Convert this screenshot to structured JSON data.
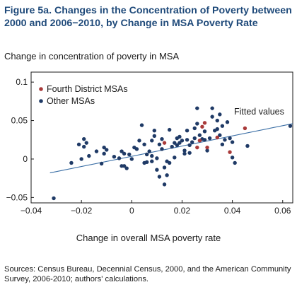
{
  "figure": {
    "title": "Figure 5a. Changes in the Concentration of Poverty between 2000 and 2006−2010, by Change in MSA Poverty Rate",
    "source": "Sources: Census Bureau, Decennial Census, 2000, and the American Community Survey, 2006-2010;  authors' calculations."
  },
  "chart_data": {
    "type": "scatter",
    "ylabel": "Change in concentration of poverty in MSA",
    "xlabel": "Change in overall MSA poverty rate",
    "xlim": [
      -0.04,
      0.064
    ],
    "ylim": [
      -0.057,
      0.113
    ],
    "x_ticks": [
      -0.04,
      -0.02,
      0,
      0.02,
      0.04,
      0.06
    ],
    "x_tick_labels": [
      "−0.04",
      "−0.02",
      "0",
      "0.02",
      "0.04",
      "0.06"
    ],
    "y_ticks": [
      -0.05,
      0,
      0.05,
      0.1
    ],
    "y_tick_labels": [
      "−0.05",
      "0",
      "0.05",
      "0.1"
    ],
    "grid": false,
    "legend_position": "top-left",
    "colors": {
      "fourth_district": "#a93a3a",
      "other": "#1f3a66",
      "fit_line": "#3a6ea5",
      "title": "#1f4a7a"
    },
    "series": [
      {
        "name": "Fourth District MSAs",
        "points": [
          [
            0.013,
            0.021
          ],
          [
            0.026,
            0.015
          ],
          [
            0.027,
            0.024
          ],
          [
            0.028,
            0.042
          ],
          [
            0.029,
            0.047
          ],
          [
            0.03,
            0.015
          ],
          [
            0.034,
            0.028
          ],
          [
            0.039,
            0.009
          ],
          [
            0.045,
            0.04
          ]
        ]
      },
      {
        "name": "Other MSAs",
        "points": [
          [
            -0.031,
            -0.051
          ],
          [
            -0.024,
            -0.005
          ],
          [
            -0.021,
            0.019
          ],
          [
            -0.02,
            0.0
          ],
          [
            -0.019,
            0.016
          ],
          [
            -0.018,
            0.021
          ],
          [
            -0.019,
            0.026
          ],
          [
            -0.017,
            0.004
          ],
          [
            -0.014,
            0.01
          ],
          [
            -0.012,
            -0.006
          ],
          [
            -0.011,
            0.015
          ],
          [
            -0.011,
            0.007
          ],
          [
            -0.01,
            0.012
          ],
          [
            -0.007,
            0.003
          ],
          [
            -0.005,
            0.001
          ],
          [
            -0.004,
            -0.009
          ],
          [
            -0.004,
            0.01
          ],
          [
            -0.003,
            0.007
          ],
          [
            -0.003,
            -0.009
          ],
          [
            -0.002,
            -0.012
          ],
          [
            -0.001,
            0.006
          ],
          [
            0.0,
            0.0
          ],
          [
            0.001,
            0.015
          ],
          [
            0.002,
            0.013
          ],
          [
            0.003,
            0.024
          ],
          [
            0.004,
            0.044
          ],
          [
            0.005,
            0.019
          ],
          [
            0.005,
            -0.005
          ],
          [
            0.006,
            0.006
          ],
          [
            0.006,
            -0.004
          ],
          [
            0.007,
            0.01
          ],
          [
            0.008,
            -0.003
          ],
          [
            0.008,
            0.004
          ],
          [
            0.008,
            0.024
          ],
          [
            0.009,
            0.03
          ],
          [
            0.009,
            0.037
          ],
          [
            0.01,
            0.001
          ],
          [
            0.01,
            -0.014
          ],
          [
            0.011,
            -0.023
          ],
          [
            0.011,
            0.019
          ],
          [
            0.012,
            0.026
          ],
          [
            0.012,
            0.013
          ],
          [
            0.013,
            -0.011
          ],
          [
            0.013,
            -0.033
          ],
          [
            0.014,
            -0.021
          ],
          [
            0.014,
            -0.003
          ],
          [
            0.015,
            0.038
          ],
          [
            0.015,
            -0.005
          ],
          [
            0.016,
            0.016
          ],
          [
            0.017,
            0.021
          ],
          [
            0.017,
            0.002
          ],
          [
            0.018,
            0.027
          ],
          [
            0.018,
            0.018
          ],
          [
            0.019,
            0.021
          ],
          [
            0.019,
            0.029
          ],
          [
            0.02,
            0.024
          ],
          [
            0.021,
            0.011
          ],
          [
            0.021,
            0.007
          ],
          [
            0.022,
            0.037
          ],
          [
            0.022,
            0.025
          ],
          [
            0.023,
            0.018
          ],
          [
            0.023,
            0.008
          ],
          [
            0.024,
            0.022
          ],
          [
            0.025,
            0.04
          ],
          [
            0.025,
            0.027
          ],
          [
            0.026,
            0.066
          ],
          [
            0.026,
            0.046
          ],
          [
            0.027,
            0.031
          ],
          [
            0.028,
            0.026
          ],
          [
            0.029,
            0.036
          ],
          [
            0.029,
            0.025
          ],
          [
            0.03,
            0.011
          ],
          [
            0.031,
            0.027
          ],
          [
            0.032,
            0.066
          ],
          [
            0.032,
            0.055
          ],
          [
            0.033,
            0.037
          ],
          [
            0.034,
            0.05
          ],
          [
            0.034,
            0.039
          ],
          [
            0.035,
            0.058
          ],
          [
            0.035,
            0.031
          ],
          [
            0.036,
            0.043
          ],
          [
            0.036,
            0.019
          ],
          [
            0.037,
            0.025
          ],
          [
            0.038,
            0.048
          ],
          [
            0.039,
            0.027
          ],
          [
            0.04,
            0.022
          ],
          [
            0.04,
            0.002
          ],
          [
            0.041,
            -0.005
          ],
          [
            0.046,
            0.017
          ],
          [
            0.063,
            0.043
          ]
        ]
      }
    ],
    "fitted_line": {
      "label": "Fitted values",
      "x": [
        -0.0325,
        0.064
      ],
      "y": [
        -0.018,
        0.046
      ]
    }
  }
}
